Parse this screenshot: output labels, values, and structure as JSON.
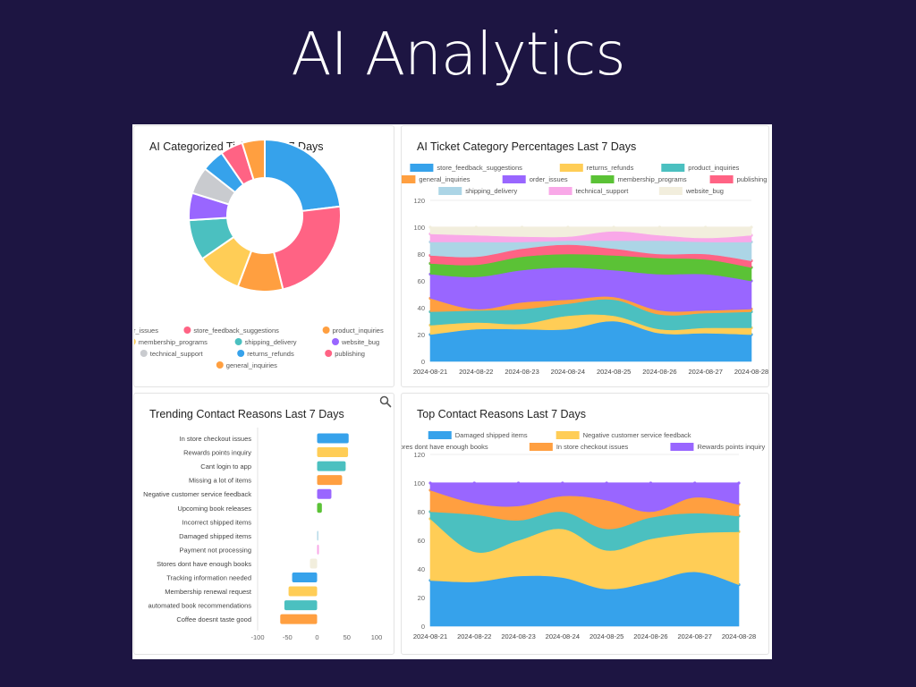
{
  "page": {
    "title": "AI Analytics"
  },
  "colors": {
    "bg": "#1d1542",
    "blue": "#36a2eb",
    "pink": "#ff6384",
    "orange": "#ff9f40",
    "yellow": "#ffcd56",
    "teal": "#4bc0c0",
    "purple": "#9966ff",
    "grey": "#c9cbcf",
    "green": "#5bc236",
    "lightblue": "#acd5e6",
    "lightpink": "#f9a8e8",
    "beige": "#f2eedd"
  },
  "chart_data": [
    {
      "id": "donut",
      "type": "pie",
      "title": "AI Categorized Tickets Last 7 Days",
      "legend_position": "bottom",
      "labels": [
        "order_issues",
        "store_feedback_suggestions",
        "product_inquiries",
        "membership_programs",
        "shipping_delivery",
        "website_bug",
        "technical_support",
        "returns_refunds",
        "publishing",
        "general_inquiries"
      ],
      "values": [
        24,
        24,
        10,
        10,
        9,
        6,
        6,
        5,
        5,
        5
      ],
      "colors": [
        "#36a2eb",
        "#ff6384",
        "#ff9f40",
        "#ffcd56",
        "#4bc0c0",
        "#9966ff",
        "#c9cbcf",
        "#36a2eb",
        "#ff6384",
        "#ff9f40"
      ]
    },
    {
      "id": "pct",
      "type": "area",
      "title": "AI Ticket Category Percentages Last 7 Days",
      "legend_position": "top",
      "x": [
        "2024-08-21",
        "2024-08-22",
        "2024-08-23",
        "2024-08-24",
        "2024-08-25",
        "2024-08-26",
        "2024-08-27",
        "2024-08-28"
      ],
      "ylim": [
        0,
        120
      ],
      "yticks": [
        0,
        20,
        40,
        60,
        80,
        100,
        120
      ],
      "legend": [
        "store_feedback_suggestions",
        "returns_refunds",
        "product_inquiries",
        "general_inquiries",
        "order_issues",
        "membership_programs",
        "publishing",
        "shipping_delivery",
        "technical_support",
        "website_bug"
      ],
      "legend_colors": [
        "#36a2eb",
        "#ffcd56",
        "#4bc0c0",
        "#ff9f40",
        "#9966ff",
        "#5bc236",
        "#ff6384",
        "#acd5e6",
        "#f9a8e8",
        "#f2eedd"
      ],
      "cumulative": [
        {
          "name": "store_feedback_suggestions",
          "color": "#36a2eb",
          "values": [
            20,
            24,
            24,
            24,
            30,
            21,
            21,
            20
          ]
        },
        {
          "name": "returns_refunds",
          "color": "#ffcd56",
          "values": [
            27,
            29,
            28,
            34,
            34,
            24,
            25,
            25
          ]
        },
        {
          "name": "product_inquiries",
          "color": "#4bc0c0",
          "values": [
            37,
            38,
            39,
            43,
            46,
            35,
            36,
            37
          ]
        },
        {
          "name": "general_inquiries",
          "color": "#ff9f40",
          "values": [
            47,
            39,
            44,
            46,
            48,
            38,
            38,
            39
          ]
        },
        {
          "name": "order_issues",
          "color": "#9966ff",
          "values": [
            65,
            63,
            68,
            70,
            68,
            65,
            65,
            60
          ]
        },
        {
          "name": "membership_programs",
          "color": "#5bc236",
          "values": [
            73,
            72,
            78,
            80,
            79,
            77,
            76,
            70
          ]
        },
        {
          "name": "publishing",
          "color": "#ff6384",
          "values": [
            79,
            78,
            84,
            87,
            84,
            80,
            80,
            75
          ]
        },
        {
          "name": "shipping_delivery",
          "color": "#acd5e6",
          "values": [
            89,
            89,
            89,
            90,
            90,
            90,
            89,
            89
          ]
        },
        {
          "name": "technical_support",
          "color": "#f9a8e8",
          "values": [
            95,
            94,
            93,
            93,
            97,
            94,
            92,
            94
          ]
        },
        {
          "name": "website_bug",
          "color": "#f2eedd",
          "values": [
            100,
            100,
            100,
            100,
            100,
            100,
            100,
            100
          ]
        }
      ]
    },
    {
      "id": "trend",
      "type": "bar",
      "orientation": "horizontal",
      "title": "Trending Contact Reasons Last 7 Days",
      "categories": [
        "In store checkout issues",
        "Rewards points inquiry",
        "Cant login to app",
        "Missing a lot of items",
        "Negative customer service feedback",
        "Upcoming book releases",
        "Incorrect shipped items",
        "Damaged shipped items",
        "Payment not processing",
        "Stores dont have enough books",
        "Tracking information needed",
        "Membership renewal request",
        "automated book recommendations",
        "Coffee doesnt taste good"
      ],
      "values": [
        53,
        52,
        48,
        42,
        24,
        8,
        0,
        2,
        3,
        -12,
        -42,
        -48,
        -55,
        -62
      ],
      "colors": [
        "#36a2eb",
        "#ffcd56",
        "#4bc0c0",
        "#ff9f40",
        "#9966ff",
        "#5bc236",
        "#ff6384",
        "#acd5e6",
        "#f9a8e8",
        "#f2eedd",
        "#36a2eb",
        "#ffcd56",
        "#4bc0c0",
        "#ff9f40"
      ],
      "xlim": [
        -100,
        100
      ],
      "xticks": [
        -100,
        -50,
        0,
        50,
        100
      ]
    },
    {
      "id": "top",
      "type": "area",
      "title": "Top Contact Reasons Last 7 Days",
      "legend_position": "top",
      "x": [
        "2024-08-21",
        "2024-08-22",
        "2024-08-23",
        "2024-08-24",
        "2024-08-25",
        "2024-08-26",
        "2024-08-27",
        "2024-08-28"
      ],
      "ylim": [
        0,
        120
      ],
      "yticks": [
        0,
        20,
        40,
        60,
        80,
        100,
        120
      ],
      "legend": [
        "Damaged shipped items",
        "Negative customer service feedback",
        "Stores dont have enough books",
        "In store checkout issues",
        "Rewards points inquiry"
      ],
      "legend_colors": [
        "#36a2eb",
        "#ffcd56",
        "#4bc0c0",
        "#ff9f40",
        "#9966ff"
      ],
      "cumulative": [
        {
          "name": "Damaged shipped items",
          "color": "#36a2eb",
          "values": [
            32,
            31,
            35,
            34,
            26,
            31,
            38,
            29
          ]
        },
        {
          "name": "Negative customer service feedback",
          "color": "#ffcd56",
          "values": [
            75,
            52,
            60,
            68,
            53,
            61,
            65,
            66
          ]
        },
        {
          "name": "Stores dont have enough books",
          "color": "#4bc0c0",
          "values": [
            80,
            78,
            74,
            80,
            68,
            76,
            79,
            77
          ]
        },
        {
          "name": "In store checkout issues",
          "color": "#ff9f40",
          "values": [
            95,
            86,
            84,
            91,
            88,
            80,
            90,
            85
          ]
        },
        {
          "name": "Rewards points inquiry",
          "color": "#9966ff",
          "values": [
            100,
            100,
            100,
            100,
            100,
            100,
            100,
            100
          ]
        }
      ]
    }
  ]
}
